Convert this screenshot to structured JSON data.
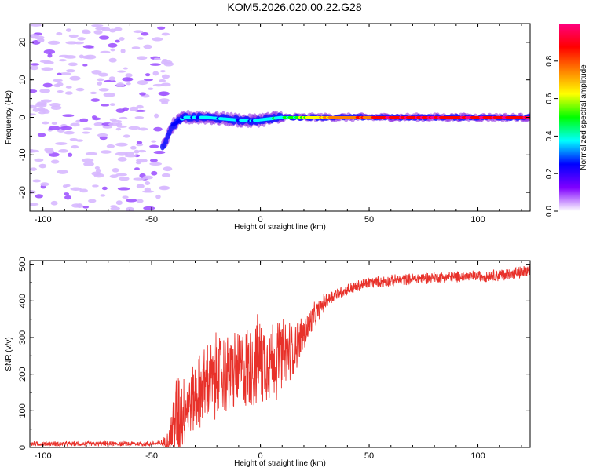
{
  "title": "KOM5.2026.020.00.22.G28",
  "chart_data": [
    {
      "type": "heatmap",
      "title": "",
      "xlabel": "Height of straight line (km)",
      "ylabel": "Frequency (Hz)",
      "xlim": [
        -106,
        124
      ],
      "ylim": [
        -25,
        25
      ],
      "xticks": [
        -100,
        -50,
        0,
        50,
        100
      ],
      "yticks": [
        -20,
        -10,
        0,
        10,
        20
      ],
      "colorbar": {
        "label": "Normalized spectral amplitude",
        "range": [
          0,
          1
        ],
        "ticks": [
          "0.0",
          "0.2",
          "0.4",
          "0.6",
          "0.8"
        ],
        "stops": [
          "#ffffff",
          "#8000ff",
          "#0000ff",
          "#00ffff",
          "#00ff00",
          "#ffff00",
          "#ff8000",
          "#ff0000",
          "#ff0080"
        ]
      },
      "ridge": [
        {
          "x": -45,
          "freq": -8,
          "amp": 0.18
        },
        {
          "x": -40,
          "freq": -2,
          "amp": 0.25
        },
        {
          "x": -35,
          "freq": 0,
          "amp": 0.3
        },
        {
          "x": -25,
          "freq": 0,
          "amp": 0.35
        },
        {
          "x": -5,
          "freq": -1,
          "amp": 0.35
        },
        {
          "x": 10,
          "freq": 0,
          "amp": 0.4
        },
        {
          "x": 30,
          "freq": 0,
          "amp": 0.7
        },
        {
          "x": 60,
          "freq": 0,
          "amp": 0.9
        },
        {
          "x": 124,
          "freq": 0,
          "amp": 0.9
        }
      ]
    },
    {
      "type": "line",
      "title": "",
      "xlabel": "Height of straight line (km)",
      "ylabel": "SNR (v/v)",
      "xlim": [
        -106,
        124
      ],
      "ylim": [
        0,
        510
      ],
      "xticks": [
        -100,
        -50,
        0,
        50,
        100
      ],
      "yticks": [
        0,
        100,
        200,
        300,
        400,
        500
      ],
      "color": "#e8312a",
      "series": [
        {
          "name": "SNR",
          "x": [
            -106,
            -90,
            -70,
            -50,
            -45,
            -42,
            -40,
            -38,
            -36,
            -34,
            -30,
            -25,
            -20,
            -15,
            -10,
            -5,
            0,
            5,
            10,
            15,
            20,
            25,
            30,
            35,
            40,
            45,
            50,
            60,
            70,
            80,
            90,
            100,
            110,
            124
          ],
          "mean": [
            10,
            10,
            10,
            10,
            12,
            20,
            60,
            90,
            100,
            110,
            140,
            170,
            190,
            200,
            210,
            220,
            240,
            240,
            250,
            270,
            310,
            360,
            400,
            420,
            430,
            440,
            450,
            455,
            460,
            465,
            465,
            468,
            470,
            480
          ],
          "amp": [
            8,
            8,
            8,
            8,
            10,
            40,
            120,
            160,
            130,
            100,
            110,
            130,
            140,
            130,
            130,
            140,
            140,
            130,
            120,
            90,
            60,
            40,
            25,
            20,
            20,
            20,
            18,
            18,
            18,
            18,
            18,
            18,
            20,
            20
          ]
        }
      ]
    }
  ]
}
